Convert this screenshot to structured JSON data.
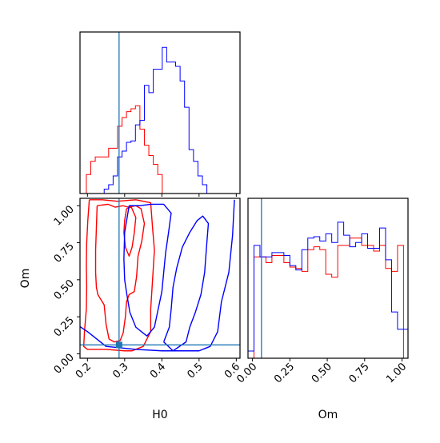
{
  "chart_data": [
    {
      "type": "histogram",
      "panel": "H0-marginal",
      "xlim": [
        0.18,
        0.61
      ],
      "truth": 0.285,
      "bin_edges": [
        0.185,
        0.197,
        0.209,
        0.221,
        0.233,
        0.245,
        0.257,
        0.269,
        0.281,
        0.293,
        0.305,
        0.317,
        0.329,
        0.341,
        0.353,
        0.365,
        0.377,
        0.389,
        0.401,
        0.413,
        0.425,
        0.437,
        0.449,
        0.461,
        0.473,
        0.485,
        0.497,
        0.509,
        0.521,
        0.533,
        0.545,
        0.557,
        0.569,
        0.581,
        0.593
      ],
      "series": [
        {
          "color": "#ff0000",
          "values": [
            0,
            0.13,
            0.22,
            0.25,
            0.25,
            0.25,
            0.31,
            0.31,
            0.46,
            0.52,
            0.56,
            0.58,
            0.6,
            0.44,
            0.33,
            0.26,
            0.2,
            0.13,
            0,
            0,
            0,
            0,
            0,
            0,
            0,
            0,
            0,
            0,
            0,
            0,
            0,
            0,
            0,
            0
          ]
        },
        {
          "color": "#0000ff",
          "values": [
            0,
            0,
            0,
            0,
            0,
            0.03,
            0.06,
            0.12,
            0.25,
            0.29,
            0.35,
            0.36,
            0.47,
            0.5,
            0.74,
            0.69,
            0.85,
            0.85,
            1.0,
            0.9,
            0.9,
            0.87,
            0.77,
            0.59,
            0.3,
            0.22,
            0.12,
            0.06,
            0,
            0,
            0,
            0,
            0,
            0
          ]
        }
      ]
    },
    {
      "type": "contour",
      "panel": "H0-Om-joint",
      "xlabel": "H0",
      "ylabel": "Om",
      "xlim": [
        0.18,
        0.61
      ],
      "ylim": [
        -0.03,
        1.05
      ],
      "xticks": [
        "0.2",
        "0.3",
        "0.4",
        "0.5",
        "0.6"
      ],
      "yticks": [
        "0.00",
        "0.25",
        "0.50",
        "0.75",
        "1.00"
      ],
      "truth": {
        "H0": 0.285,
        "Om": 0.06
      },
      "series": [
        {
          "color": "#ff0000",
          "contours": [
            [
              [
                0.205,
                1.04
              ],
              [
                0.201,
                0.9
              ],
              [
                0.198,
                0.75
              ],
              [
                0.197,
                0.6
              ],
              [
                0.198,
                0.45
              ],
              [
                0.197,
                0.3
              ],
              [
                0.192,
                0.15
              ],
              [
                0.19,
                0.05
              ],
              [
                0.2,
                0.03
              ],
              [
                0.25,
                0.03
              ],
              [
                0.3,
                0.02
              ],
              [
                0.32,
                0.02
              ],
              [
                0.35,
                0.05
              ],
              [
                0.37,
                0.15
              ],
              [
                0.37,
                0.3
              ],
              [
                0.375,
                0.5
              ],
              [
                0.38,
                0.7
              ],
              [
                0.375,
                0.85
              ],
              [
                0.37,
                1.02
              ],
              [
                0.33,
                1.04
              ],
              [
                0.28,
                1.03
              ],
              [
                0.24,
                1.04
              ],
              [
                0.205,
                1.04
              ]
            ],
            [
              [
                0.226,
                1.0
              ],
              [
                0.224,
                0.85
              ],
              [
                0.222,
                0.7
              ],
              [
                0.222,
                0.55
              ],
              [
                0.224,
                0.45
              ],
              [
                0.228,
                0.4
              ],
              [
                0.245,
                0.33
              ],
              [
                0.25,
                0.2
              ],
              [
                0.258,
                0.1
              ],
              [
                0.272,
                0.08
              ],
              [
                0.288,
                0.09
              ],
              [
                0.296,
                0.14
              ],
              [
                0.302,
                0.25
              ],
              [
                0.305,
                0.35
              ],
              [
                0.312,
                0.4
              ],
              [
                0.326,
                0.42
              ],
              [
                0.332,
                0.52
              ],
              [
                0.336,
                0.66
              ],
              [
                0.346,
                0.76
              ],
              [
                0.353,
                0.88
              ],
              [
                0.344,
                0.98
              ],
              [
                0.33,
                1.0
              ],
              [
                0.31,
                0.99
              ],
              [
                0.295,
                1.0
              ],
              [
                0.275,
                0.99
              ],
              [
                0.255,
                1.01
              ],
              [
                0.226,
                1.0
              ]
            ],
            [
              [
                0.305,
                0.98
              ],
              [
                0.3,
                0.9
              ],
              [
                0.298,
                0.82
              ],
              [
                0.302,
                0.72
              ],
              [
                0.312,
                0.66
              ],
              [
                0.32,
                0.72
              ],
              [
                0.326,
                0.82
              ],
              [
                0.33,
                0.92
              ],
              [
                0.318,
                0.99
              ],
              [
                0.305,
                0.98
              ]
            ]
          ]
        },
        {
          "color": "#0000ff",
          "contours": [
            [
              [
                0.125,
                1.04
              ],
              [
                0.14,
                0.7
              ],
              [
                0.15,
                0.4
              ],
              [
                0.17,
                0.2
              ],
              [
                0.2,
                0.15
              ],
              [
                0.25,
                0.05
              ],
              [
                0.33,
                0.03
              ],
              [
                0.4,
                0.02
              ],
              [
                0.45,
                0.02
              ],
              [
                0.5,
                0.02
              ],
              [
                0.53,
                0.05
              ],
              [
                0.55,
                0.15
              ],
              [
                0.56,
                0.35
              ],
              [
                0.58,
                0.55
              ],
              [
                0.59,
                0.8
              ],
              [
                0.595,
                1.04
              ]
            ],
            [
              [
                0.312,
                1.0
              ],
              [
                0.3,
                0.82
              ],
              [
                0.298,
                0.64
              ],
              [
                0.3,
                0.5
              ],
              [
                0.306,
                0.4
              ],
              [
                0.314,
                0.28
              ],
              [
                0.33,
                0.18
              ],
              [
                0.35,
                0.14
              ],
              [
                0.36,
                0.12
              ],
              [
                0.38,
                0.18
              ],
              [
                0.39,
                0.3
              ],
              [
                0.4,
                0.42
              ],
              [
                0.405,
                0.55
              ],
              [
                0.41,
                0.68
              ],
              [
                0.418,
                0.82
              ],
              [
                0.425,
                0.95
              ],
              [
                0.405,
                1.01
              ],
              [
                0.37,
                1.01
              ],
              [
                0.34,
                1.0
              ],
              [
                0.312,
                1.0
              ]
            ],
            [
              [
                0.405,
                0.08
              ],
              [
                0.42,
                0.18
              ],
              [
                0.425,
                0.3
              ],
              [
                0.43,
                0.45
              ],
              [
                0.44,
                0.58
              ],
              [
                0.455,
                0.72
              ],
              [
                0.475,
                0.82
              ],
              [
                0.495,
                0.9
              ],
              [
                0.51,
                0.93
              ],
              [
                0.525,
                0.88
              ],
              [
                0.52,
                0.72
              ],
              [
                0.515,
                0.55
              ],
              [
                0.505,
                0.4
              ],
              [
                0.49,
                0.28
              ],
              [
                0.475,
                0.18
              ],
              [
                0.465,
                0.08
              ],
              [
                0.43,
                0.02
              ],
              [
                0.405,
                0.08
              ]
            ]
          ]
        }
      ]
    },
    {
      "type": "histogram",
      "panel": "Om-marginal",
      "xlabel": "Om",
      "xlim": [
        -0.03,
        1.04
      ],
      "xticks": [
        "0.00",
        "0.25",
        "0.50",
        "0.75",
        "1.00"
      ],
      "truth": 0.06,
      "bin_edges": [
        -0.03,
        0.01,
        0.05,
        0.09,
        0.13,
        0.17,
        0.21,
        0.25,
        0.29,
        0.33,
        0.37,
        0.41,
        0.45,
        0.49,
        0.53,
        0.57,
        0.61,
        0.65,
        0.69,
        0.73,
        0.77,
        0.81,
        0.85,
        0.89,
        0.93,
        0.97,
        1.01,
        1.04
      ],
      "series": [
        {
          "color": "#ff0000",
          "values": [
            0,
            0.7,
            0.7,
            0.66,
            0.71,
            0.71,
            0.66,
            0.63,
            0.62,
            0.6,
            0.75,
            0.77,
            0.75,
            0.58,
            0.56,
            0.78,
            0.78,
            0.83,
            0.83,
            0.78,
            0.78,
            0.74,
            0.78,
            0.62,
            0.6,
            0.78,
            0
          ]
        },
        {
          "color": "#0000ff",
          "values": [
            0.05,
            0.78,
            0.7,
            0.7,
            0.73,
            0.73,
            0.71,
            0.64,
            0.61,
            0.75,
            0.83,
            0.84,
            0.81,
            0.86,
            0.8,
            0.94,
            0.85,
            0.77,
            0.8,
            0.86,
            0.76,
            0.76,
            0.9,
            0.68,
            0.32,
            0.2,
            0.2
          ]
        }
      ]
    }
  ]
}
